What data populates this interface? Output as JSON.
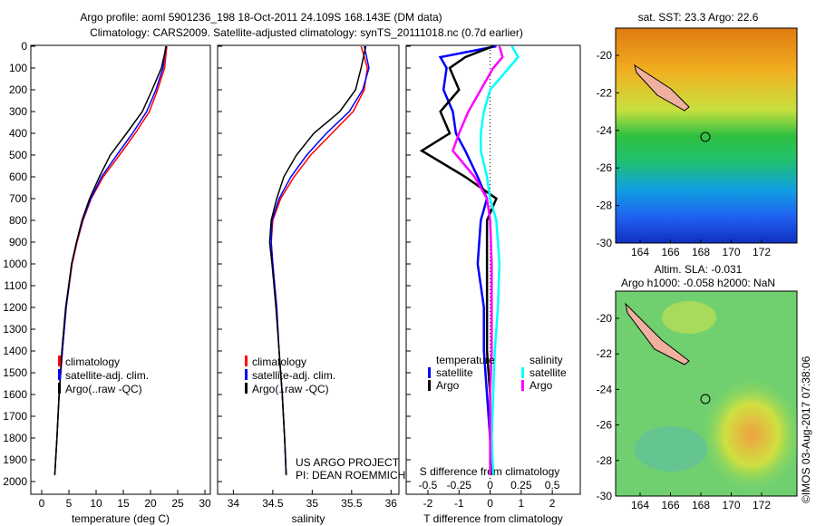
{
  "title": {
    "line1": "Argo profile: aoml 5901236_198 18-Oct-2011 24.109S 168.143E (DM data)",
    "line2": "Climatology: CARS2009. Satellite-adjusted climatology: synTS_20111018.nc (0.7d earlier)"
  },
  "colors": {
    "climatology": "#ff0000",
    "satellite": "#0000ff",
    "argo": "#000000",
    "sal_satellite": "#00ffff",
    "sal_argo": "#ff00ff"
  },
  "chart_data": [
    {
      "type": "line",
      "id": "temperature",
      "xlabel": "temperature (deg C)",
      "ylabel": "",
      "xlim": [
        -2,
        31
      ],
      "ylim": [
        2050,
        0
      ],
      "xticks": [
        0,
        5,
        10,
        15,
        20,
        25,
        30
      ],
      "yticks": [
        0,
        100,
        200,
        300,
        400,
        500,
        600,
        700,
        800,
        900,
        1000,
        1100,
        1200,
        1300,
        1400,
        1500,
        1600,
        1700,
        1800,
        1900,
        2000
      ],
      "legend": [
        "climatology",
        "satellite-adj. clim.",
        "Argo(..raw -QC)"
      ],
      "depth": [
        0,
        100,
        200,
        300,
        400,
        500,
        600,
        700,
        800,
        900,
        1000,
        1200,
        1400,
        1600,
        1800,
        1970
      ],
      "series": [
        {
          "name": "climatology",
          "values": [
            23,
            22.6,
            21.3,
            19.8,
            17.2,
            14.3,
            11.3,
            9.1,
            7.6,
            6.5,
            5.6,
            4.5,
            3.8,
            3.2,
            2.8,
            2.4
          ]
        },
        {
          "name": "satellite-adj. clim.",
          "values": [
            22.8,
            22.3,
            21,
            19.3,
            16.7,
            13.8,
            11,
            9,
            7.5,
            6.4,
            5.5,
            4.5,
            3.8,
            3.2,
            2.8,
            2.4
          ]
        },
        {
          "name": "Argo(..raw -QC)",
          "values": [
            22.9,
            22,
            20.3,
            18.5,
            15.6,
            12.6,
            10.6,
            8.8,
            7.4,
            6.4,
            5.5,
            4.4,
            3.7,
            3.2,
            2.8,
            2.4
          ]
        }
      ]
    },
    {
      "type": "line",
      "id": "salinity",
      "xlabel": "salinity",
      "xlim": [
        33.8,
        36.1
      ],
      "ylim": [
        2050,
        0
      ],
      "xticks": [
        34,
        34.5,
        35,
        35.5,
        36
      ],
      "legend": [
        "climatology",
        "satellite-adj. clim.",
        "Argo(..raw -QC)"
      ],
      "depth": [
        0,
        100,
        200,
        300,
        400,
        500,
        600,
        700,
        800,
        900,
        1000,
        1200,
        1400,
        1600,
        1800,
        1970
      ],
      "series": [
        {
          "name": "climatology",
          "values": [
            35.62,
            35.7,
            35.66,
            35.52,
            35.25,
            34.98,
            34.77,
            34.6,
            34.5,
            34.48,
            34.5,
            34.55,
            34.58,
            34.62,
            34.65,
            34.67
          ]
        },
        {
          "name": "satellite-adj. clim.",
          "values": [
            35.66,
            35.72,
            35.64,
            35.47,
            35.18,
            34.93,
            34.73,
            34.58,
            34.49,
            34.48,
            34.5,
            34.55,
            34.58,
            34.62,
            34.65,
            34.67
          ]
        },
        {
          "name": "Argo(..raw -QC)",
          "values": [
            35.68,
            35.62,
            35.55,
            35.35,
            35.02,
            34.8,
            34.64,
            34.55,
            34.48,
            34.46,
            34.49,
            34.54,
            34.58,
            34.62,
            34.65,
            34.67
          ]
        }
      ]
    },
    {
      "type": "line",
      "id": "difference",
      "xlabel": "T difference from climatology",
      "x2label": "S difference from climatology",
      "xlim": [
        -2.7,
        2.9
      ],
      "ylim": [
        2050,
        0
      ],
      "xticks": [
        -2,
        -1,
        0,
        1,
        2
      ],
      "x2ticks": [
        "-0.5",
        "-0.25",
        "0",
        "0.25",
        "0.5"
      ],
      "legend": {
        "temperature": "temperature",
        "salinity": "salinity",
        "satellite": "satellite",
        "argo": "Argo"
      },
      "depth": [
        0,
        50,
        100,
        200,
        300,
        400,
        480,
        600,
        700,
        800,
        1000,
        1200,
        1400,
        1600,
        1800,
        1970
      ],
      "series": [
        {
          "name": "T satellite",
          "values": [
            0.2,
            -1.6,
            -1.4,
            -1.5,
            -1.2,
            -1.1,
            -0.8,
            -0.4,
            -0.1,
            -0.3,
            -0.4,
            -0.2,
            -0.2,
            -0.1,
            0,
            0.1
          ]
        },
        {
          "name": "T Argo",
          "values": [
            0.1,
            -0.8,
            -1.3,
            -1.0,
            -1.6,
            -1.3,
            -2.2,
            -0.8,
            0.2,
            -0.1,
            -0.1,
            -0.1,
            -0.1,
            0,
            0,
            0.05
          ]
        },
        {
          "name": "S satellite",
          "values": [
            0.7,
            0.9,
            0.6,
            0,
            -0.2,
            -0.3,
            -0.3,
            -0.1,
            0,
            0.2,
            0.3,
            0.25,
            0.15,
            0.1,
            0.05,
            0.1
          ]
        },
        {
          "name": "S Argo",
          "values": [
            0.3,
            0.4,
            0.1,
            -0.3,
            -0.7,
            -1.0,
            -1.2,
            -0.5,
            -0.1,
            0,
            0.05,
            0.05,
            0.05,
            0,
            0,
            0
          ]
        }
      ]
    }
  ],
  "footer": {
    "project": "US ARGO PROJECT",
    "pi": "PI: DEAN ROEMMICH"
  },
  "maps": {
    "sst_title": "sat. SST: 23.3 Argo: 22.6",
    "sla_title1": "Altim. SLA: -0.031",
    "sla_title2": "Argo h1000: -0.058 h2000: NaN",
    "lon_ticks": [
      "164",
      "166",
      "168",
      "170",
      "172"
    ],
    "lat_ticks": [
      "-20",
      "-22",
      "-24",
      "-26",
      "-28",
      "-30"
    ],
    "credit": "©IMOS 03-Aug-2017 07:38:06"
  }
}
